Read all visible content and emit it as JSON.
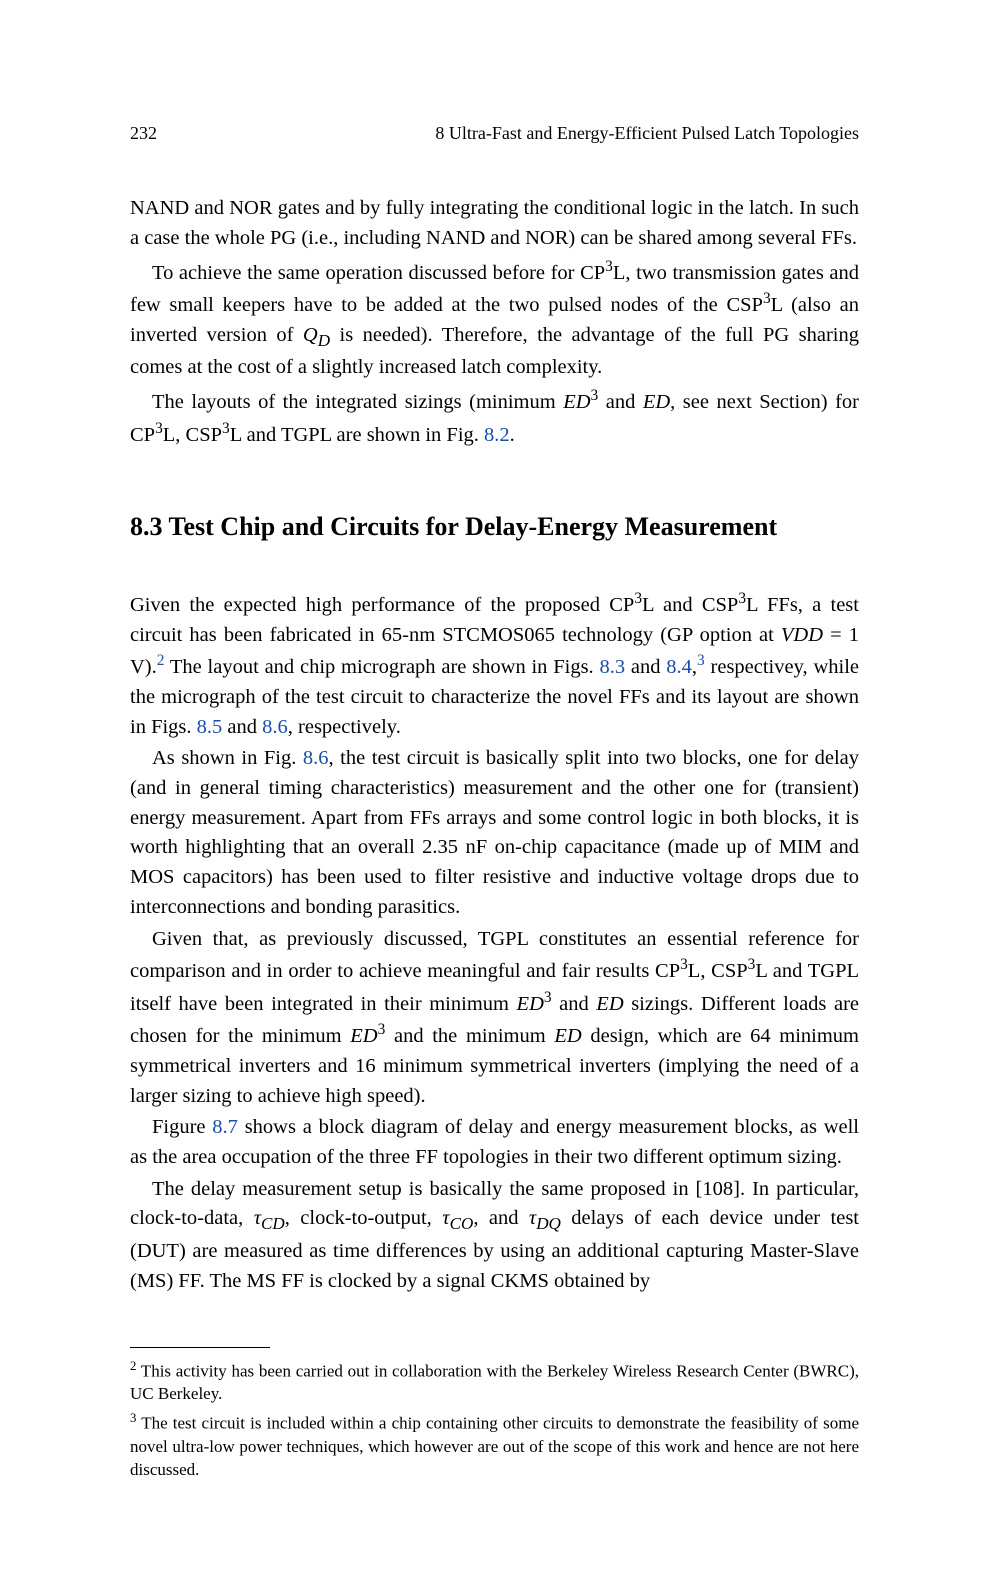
{
  "header": {
    "page": "232",
    "running": "8   Ultra-Fast and Energy-Efficient Pulsed Latch Topologies"
  },
  "para1": "NAND and NOR gates and by fully integrating the conditional logic in the latch. In such a case the whole PG (i.e., including NAND and NOR) can be shared among several FFs.",
  "para2_a": "To achieve the same operation discussed before for CP",
  "para2_b": "L, two transmission gates and few small keepers have to be added at the two pulsed nodes of the CSP",
  "para2_c": "L (also an inverted version of ",
  "para2_qd": "Q",
  "para2_qd_sub": "D",
  "para2_d": " is needed). Therefore, the advantage of the full PG sharing comes at the cost of a slightly increased latch complexity.",
  "para3_a": "The layouts of the integrated sizings (minimum ",
  "para3_ed": "ED",
  "para3_b": " and ",
  "para3_c": ", see next Section) for CP",
  "para3_d": "L, CSP",
  "para3_e": "L and TGPL are shown in Fig. ",
  "para3_ref": "8.2",
  "section": "8.3  Test Chip and Circuits for Delay-Energy Measurement",
  "para4_a": "Given the expected high performance of the proposed CP",
  "para4_b": "L and CSP",
  "para4_c": "L FFs, a test circuit has been fabricated in 65-nm STCMOS065 technology (GP option at ",
  "para4_vdd": "VDD",
  "para4_d": " = 1 V).",
  "para4_e": " The layout and chip micrograph are shown in Figs. ",
  "para4_ref1": "8.3",
  "para4_f": " and ",
  "para4_ref2": "8.4",
  "para4_g": " respectivey, while the micrograph of the test circuit to characterize the novel FFs and its layout are shown in Figs. ",
  "para4_ref3": "8.5",
  "para4_h": " and ",
  "para4_ref4": "8.6",
  "para4_i": ", respectively.",
  "para5_a": "As shown in Fig. ",
  "para5_ref": "8.6",
  "para5_b": ", the test circuit is basically split into two blocks, one for delay (and in general timing characteristics) measurement and the other one for (transient) energy measurement. Apart from FFs arrays and some control logic in both blocks, it is worth highlighting that an overall 2.35 nF on-chip capacitance (made up of MIM and MOS capacitors) has been used to filter resistive and inductive voltage drops due to interconnections and bonding parasitics.",
  "para6_a": "Given that, as previously discussed, TGPL constitutes an essential reference for comparison and in order to achieve meaningful and fair results CP",
  "para6_b": "L, CSP",
  "para6_c": "L and TGPL itself have been integrated in their minimum ",
  "para6_d": " and ",
  "para6_e": " sizings. Different loads are chosen for the minimum ",
  "para6_f": " and the minimum ",
  "para6_g": " design, which are 64 minimum symmetrical inverters and 16 minimum symmetrical inverters (implying the need of a larger sizing to achieve high speed).",
  "para7_a": "Figure ",
  "para7_ref": "8.7",
  "para7_b": " shows a block diagram of delay and energy measurement blocks, as well as the area occupation of the three FF topologies in their two different optimum sizing.",
  "para8_a": "The delay measurement setup is basically the same proposed in [108]. In particular, clock-to-data, ",
  "para8_tcd": "τ",
  "para8_cd": "CD",
  "para8_b": ", clock-to-output, ",
  "para8_co": "CO",
  "para8_c": ", and ",
  "para8_dq": "DQ",
  "para8_d": " delays of each device under test (DUT) are measured as time differences by using an additional capturing Master-Slave (MS) FF. The MS FF is clocked by a signal CKMS obtained by",
  "fn2_a": "2",
  "fn2_b": "  This activity has been carried out in collaboration with the Berkeley Wireless Research Center (BWRC), UC Berkeley.",
  "fn3_a": "3",
  "fn3_b": "  The test circuit is included within a chip containing other circuits to demonstrate the feasibility of some novel ultra-low power techniques, which however are out of the scope of this work and hence are not here discussed.",
  "sup3": "3",
  "sup2": "2",
  "comma": ",",
  "period": "."
}
